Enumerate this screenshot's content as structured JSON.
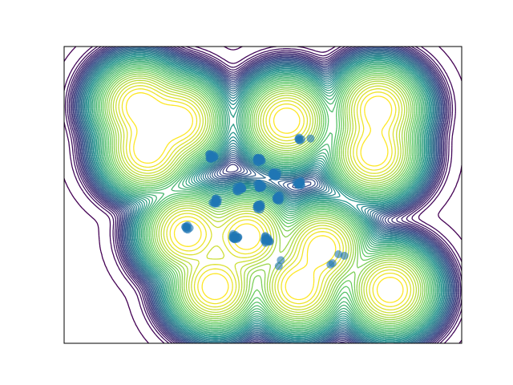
{
  "chart_data": {
    "type": "contour",
    "title": "",
    "xlabel": "",
    "ylabel": "",
    "xlim": [
      0,
      1
    ],
    "ylim": [
      0,
      1
    ],
    "grid": false,
    "legend": "none",
    "axis_ticks": "hidden",
    "colormap": [
      "#440154",
      "#3b528b",
      "#21918c",
      "#5ec962",
      "#fde725"
    ],
    "point_color": "#1f77b4",
    "contour_bases": [
      {
        "x": 0.19,
        "y": 0.8
      },
      {
        "x": 0.29,
        "y": 0.75
      },
      {
        "x": 0.21,
        "y": 0.65
      },
      {
        "x": 0.56,
        "y": 0.75
      },
      {
        "x": 0.79,
        "y": 0.79
      },
      {
        "x": 0.78,
        "y": 0.64
      },
      {
        "x": 0.31,
        "y": 0.37
      },
      {
        "x": 0.46,
        "y": 0.36
      },
      {
        "x": 0.65,
        "y": 0.32
      },
      {
        "x": 0.38,
        "y": 0.19
      },
      {
        "x": 0.59,
        "y": 0.19
      },
      {
        "x": 0.82,
        "y": 0.18
      }
    ],
    "clusters": [
      {
        "x": 0.37,
        "y": 0.63,
        "n": 14,
        "spread": 0.008
      },
      {
        "x": 0.49,
        "y": 0.62,
        "n": 14,
        "spread": 0.008
      },
      {
        "x": 0.53,
        "y": 0.57,
        "n": 14,
        "spread": 0.008
      },
      {
        "x": 0.59,
        "y": 0.54,
        "n": 14,
        "spread": 0.008
      },
      {
        "x": 0.44,
        "y": 0.52,
        "n": 14,
        "spread": 0.008
      },
      {
        "x": 0.49,
        "y": 0.53,
        "n": 14,
        "spread": 0.008
      },
      {
        "x": 0.54,
        "y": 0.49,
        "n": 14,
        "spread": 0.008
      },
      {
        "x": 0.38,
        "y": 0.48,
        "n": 14,
        "spread": 0.008
      },
      {
        "x": 0.49,
        "y": 0.46,
        "n": 14,
        "spread": 0.008
      },
      {
        "x": 0.31,
        "y": 0.39,
        "n": 8,
        "spread": 0.006
      },
      {
        "x": 0.43,
        "y": 0.36,
        "n": 14,
        "spread": 0.008
      },
      {
        "x": 0.51,
        "y": 0.35,
        "n": 14,
        "spread": 0.01
      },
      {
        "x": 0.59,
        "y": 0.69,
        "n": 5,
        "spread": 0.008
      }
    ],
    "points": [
      {
        "x": 0.62,
        "y": 0.69
      },
      {
        "x": 0.545,
        "y": 0.28
      },
      {
        "x": 0.54,
        "y": 0.26
      },
      {
        "x": 0.69,
        "y": 0.3
      },
      {
        "x": 0.705,
        "y": 0.295
      },
      {
        "x": 0.675,
        "y": 0.27
      },
      {
        "x": 0.67,
        "y": 0.265
      }
    ]
  }
}
